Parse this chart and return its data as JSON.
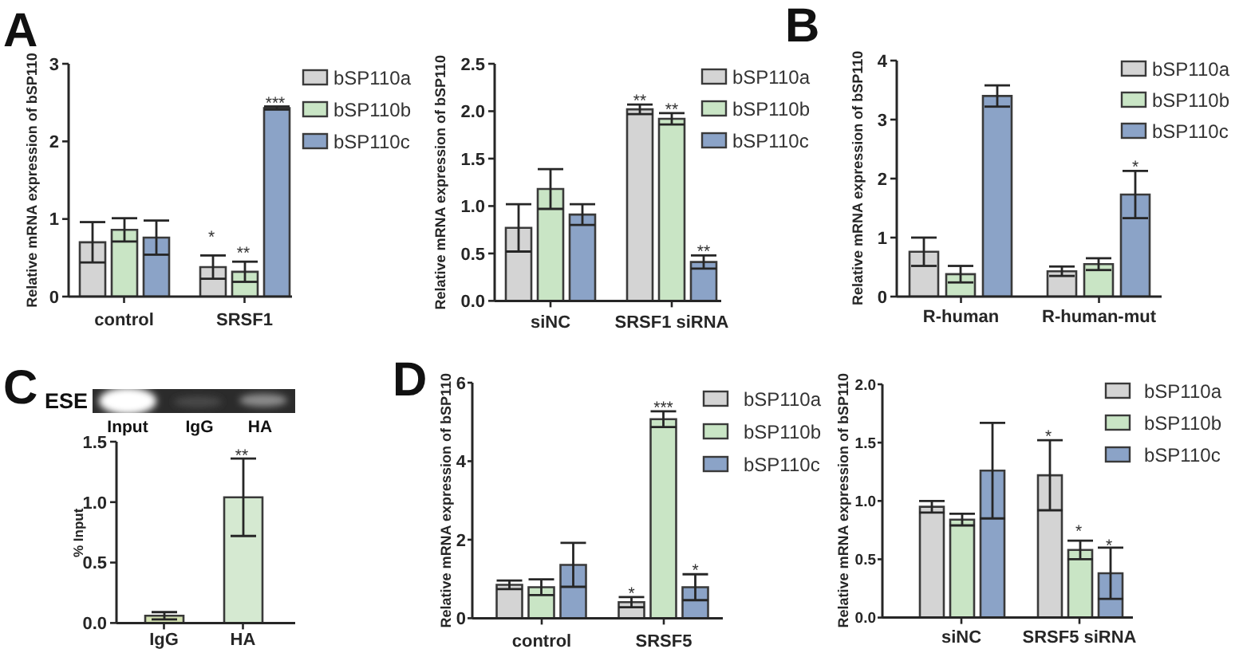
{
  "chart_data": [
    {
      "type": "bar",
      "ylabel": "Relative mRNA expression of bSP110",
      "categories": [
        "control",
        "SRSF1"
      ],
      "series": [
        {
          "name": "bSP110a",
          "color": "#d4d4d4",
          "values": [
            0.7,
            0.38
          ],
          "errors": [
            0.26,
            0.15
          ]
        },
        {
          "name": "bSP110b",
          "color": "#c9e5c5",
          "values": [
            0.86,
            0.32
          ],
          "errors": [
            0.15,
            0.13
          ]
        },
        {
          "name": "bSP110c",
          "color": "#8ba3c7",
          "values": [
            0.76,
            2.43
          ],
          "errors": [
            0.22,
            0.02
          ]
        }
      ],
      "ylim": [
        0,
        3
      ],
      "yticks": [
        0,
        1,
        2,
        3
      ],
      "legend": "top right",
      "annotations": [
        "A",
        "*",
        "**",
        "***"
      ]
    },
    {
      "type": "bar",
      "ylabel": "Relative mRNA expression of bSP110",
      "categories": [
        "siNC",
        "SRSF1 siRNA"
      ],
      "series": [
        {
          "name": "bSP110a",
          "color": "#d4d4d4",
          "values": [
            0.77,
            2.02
          ],
          "errors": [
            0.25,
            0.05
          ]
        },
        {
          "name": "bSP110b",
          "color": "#c9e5c5",
          "values": [
            1.18,
            1.92
          ],
          "errors": [
            0.21,
            0.06
          ]
        },
        {
          "name": "bSP110c",
          "color": "#8ba3c7",
          "values": [
            0.91,
            0.41
          ],
          "errors": [
            0.11,
            0.07
          ]
        }
      ],
      "ylim": [
        0,
        2.5
      ],
      "yticks": [
        {
          "value": 0,
          "label": "0.0"
        },
        0.5,
        {
          "value": 1,
          "label": "1.0"
        },
        1.5,
        {
          "value": 2,
          "label": "2.0"
        },
        2.5
      ],
      "legend": "top right",
      "annotations": [
        "**",
        "**",
        "**"
      ]
    },
    {
      "type": "bar",
      "ylabel": "Relative mRNA expression of bSP110",
      "categories": [
        "R-human",
        "R-human-mut"
      ],
      "series": [
        {
          "name": "bSP110a",
          "color": "#d4d4d4",
          "values": [
            0.76,
            0.43
          ],
          "errors": [
            0.24,
            0.08
          ]
        },
        {
          "name": "bSP110b",
          "color": "#c9e5c5",
          "values": [
            0.38,
            0.55
          ],
          "errors": [
            0.14,
            0.1
          ]
        },
        {
          "name": "bSP110c",
          "color": "#8ba3c7",
          "values": [
            3.4,
            1.73
          ],
          "errors": [
            0.18,
            0.4
          ]
        }
      ],
      "ylim": [
        0,
        4
      ],
      "yticks": [
        0,
        1,
        2,
        3,
        4
      ],
      "legend": "top right",
      "annotations": [
        "B",
        "*"
      ]
    },
    {
      "type": "bar",
      "ylabel": "% Input",
      "categories": [
        "IgG",
        "HA"
      ],
      "values": [
        0.06,
        1.04
      ],
      "errors": [
        0.03,
        0.32
      ],
      "colors": [
        "#d5e3b3",
        "#d5e9d1"
      ],
      "ylim": [
        0,
        1.5
      ],
      "yticks": [
        {
          "value": 0,
          "label": "0.0"
        },
        0.5,
        {
          "value": 1,
          "label": "1.0"
        },
        1.5
      ],
      "annotations": [
        "C",
        "ESE",
        "Input",
        "IgG",
        "HA",
        "**"
      ]
    },
    {
      "type": "bar",
      "ylabel": "Relative mRNA expression of bSP110",
      "categories": [
        "control",
        "SRSF5"
      ],
      "series": [
        {
          "name": "bSP110a",
          "color": "#d4d4d4",
          "values": [
            0.85,
            0.41
          ],
          "errors": [
            0.11,
            0.13
          ]
        },
        {
          "name": "bSP110b",
          "color": "#c9e5c5",
          "values": [
            0.79,
            5.07
          ],
          "errors": [
            0.2,
            0.2
          ]
        },
        {
          "name": "bSP110c",
          "color": "#8ba3c7",
          "values": [
            1.36,
            0.79
          ],
          "errors": [
            0.56,
            0.33
          ]
        }
      ],
      "ylim": [
        0,
        6
      ],
      "yticks": [
        0,
        2,
        4,
        6
      ],
      "legend": "top right",
      "annotations": [
        "D",
        "*",
        "***",
        "*"
      ]
    },
    {
      "type": "bar",
      "ylabel": "Relative mRNA expression of bSP110",
      "categories": [
        "siNC",
        "SRSF5 siRNA"
      ],
      "series": [
        {
          "name": "bSP110a",
          "color": "#d4d4d4",
          "values": [
            0.95,
            1.22
          ],
          "errors": [
            0.05,
            0.3
          ]
        },
        {
          "name": "bSP110b",
          "color": "#c9e5c5",
          "values": [
            0.84,
            0.58
          ],
          "errors": [
            0.05,
            0.08
          ]
        },
        {
          "name": "bSP110c",
          "color": "#8ba3c7",
          "values": [
            1.26,
            0.38
          ],
          "errors": [
            0.41,
            0.22
          ]
        }
      ],
      "ylim": [
        0,
        2
      ],
      "yticks": [
        {
          "value": 0,
          "label": "0.0"
        },
        0.5,
        {
          "value": 1,
          "label": "1.0"
        },
        1.5,
        {
          "value": 2,
          "label": "2.0"
        }
      ],
      "legend": "top right",
      "annotations": [
        "*",
        "*",
        "*"
      ]
    }
  ]
}
